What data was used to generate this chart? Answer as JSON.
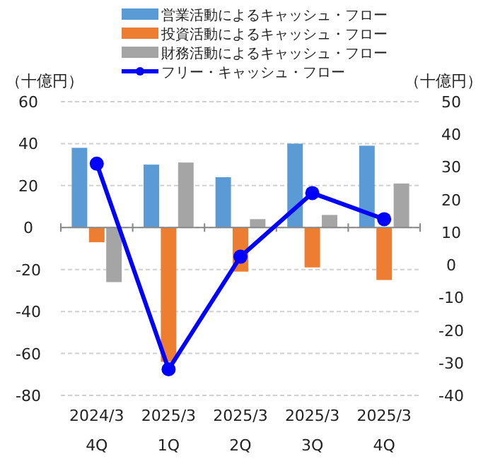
{
  "chart_data": {
    "type": "bar",
    "ylabel": "（十億円）",
    "y2label": "（十億円）",
    "categories": [
      "2024/3\n4Q",
      "2025/3\n1Q",
      "2025/3\n2Q",
      "2025/3\n3Q",
      "2025/3\n4Q"
    ],
    "series": [
      {
        "name": "営業活動によるキャッシュ・フロー",
        "color": "#5b9bd5",
        "values": [
          38,
          30,
          24,
          40,
          39
        ]
      },
      {
        "name": "投資活動によるキャッシュ・フロー",
        "color": "#ed7d31",
        "values": [
          -7,
          -64,
          -21,
          -19,
          -25
        ]
      },
      {
        "name": "財務活動によるキャッシュ・フロー",
        "color": "#a5a5a5",
        "values": [
          -26,
          31,
          4,
          6,
          21
        ]
      },
      {
        "name": "フリー・キャッシュ・フロー",
        "color": "#0000ff",
        "type": "line",
        "axis": "y2",
        "marker": "circle",
        "line_style": "solid",
        "values": [
          31,
          -32,
          2.5,
          22,
          14
        ]
      }
    ],
    "ylim": [
      -80,
      60
    ],
    "yticks": [
      -80,
      -60,
      -40,
      -20,
      0,
      20,
      40,
      60
    ],
    "y2lim": [
      -40,
      50
    ],
    "y2ticks": [
      -40,
      -30,
      -20,
      -10,
      0,
      10,
      20,
      30,
      40,
      50
    ],
    "grid": "y",
    "legend": "top"
  }
}
